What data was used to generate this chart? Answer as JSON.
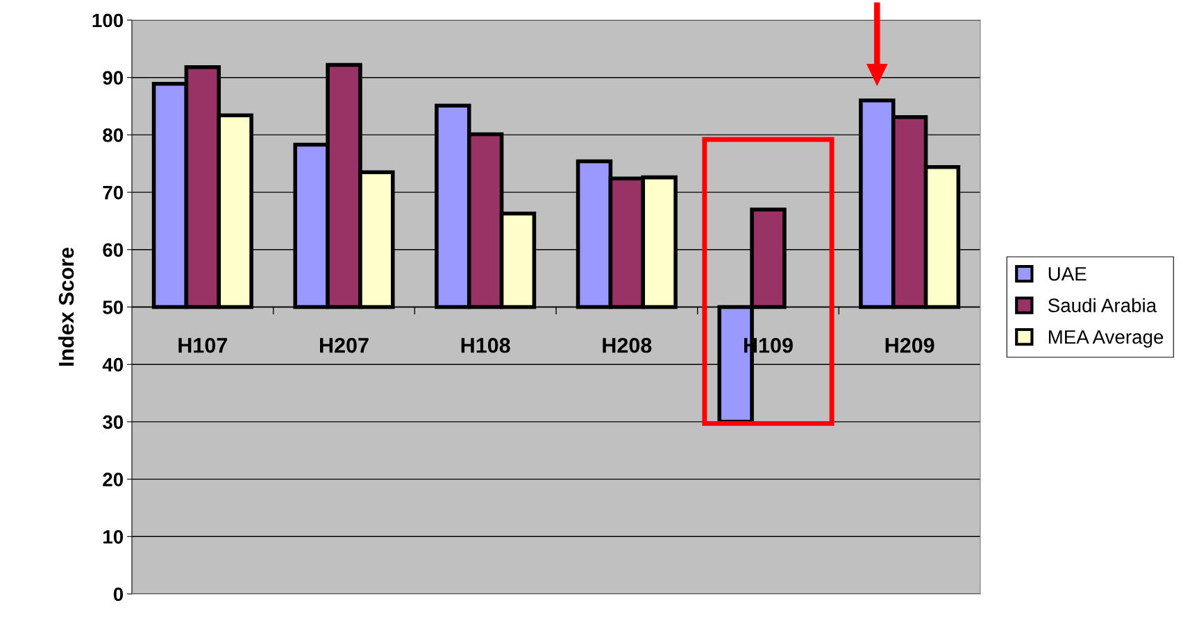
{
  "chart_data": {
    "type": "bar",
    "ylabel": "Index Score",
    "categories": [
      "H107",
      "H207",
      "H108",
      "H208",
      "H109",
      "H209"
    ],
    "series": [
      {
        "name": "UAE",
        "color": "#9999ff",
        "base": [
          50,
          50,
          50,
          50,
          50,
          50
        ],
        "values": [
          38.9,
          28.3,
          35.1,
          25.4,
          -20.0,
          36.0
        ]
      },
      {
        "name": "Saudi Arabia",
        "color": "#993366",
        "base": [
          50,
          50,
          50,
          50,
          50,
          50
        ],
        "values": [
          41.8,
          42.2,
          30.1,
          22.4,
          17.0,
          33.1
        ]
      },
      {
        "name": "MEA Average",
        "color": "#ffffcc",
        "base": [
          50,
          50,
          50,
          50,
          null,
          50
        ],
        "values": [
          33.4,
          23.5,
          16.3,
          22.6,
          null,
          24.4
        ]
      }
    ],
    "ylim": [
      0,
      100
    ],
    "yticks": [
      0,
      10,
      20,
      30,
      40,
      50,
      60,
      70,
      80,
      90,
      100
    ],
    "grid": "y",
    "legend": "right"
  }
}
